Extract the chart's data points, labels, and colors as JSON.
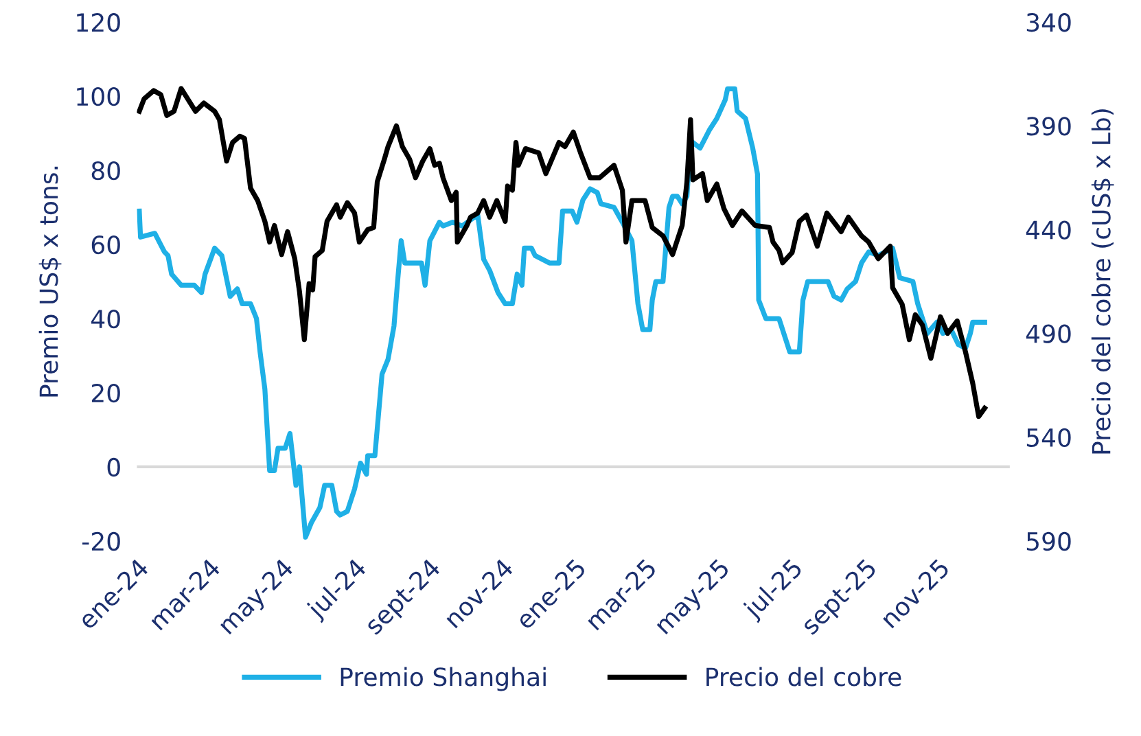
{
  "chart_data": {
    "type": "line",
    "ylabel": "Premio US$ x tons.",
    "y2label": "Precio del cobre (cUS$ x Lb)",
    "xlim": [
      "2024-01-01",
      "2025-12-31"
    ],
    "xticks": [
      {
        "value": "2024-01-01",
        "label": "ene-24"
      },
      {
        "value": "2024-03-01",
        "label": "mar-24"
      },
      {
        "value": "2024-05-01",
        "label": "may-24"
      },
      {
        "value": "2024-07-01",
        "label": "jul-24"
      },
      {
        "value": "2024-09-01",
        "label": "sept-24"
      },
      {
        "value": "2024-11-01",
        "label": "nov-24"
      },
      {
        "value": "2025-01-01",
        "label": "ene-25"
      },
      {
        "value": "2025-03-01",
        "label": "mar-25"
      },
      {
        "value": "2025-05-01",
        "label": "may-25"
      },
      {
        "value": "2025-07-01",
        "label": "jul-25"
      },
      {
        "value": "2025-09-01",
        "label": "sept-25"
      },
      {
        "value": "2025-11-01",
        "label": "nov-25"
      }
    ],
    "ylim": [
      -20,
      120
    ],
    "yticks": [
      -20,
      0,
      20,
      40,
      60,
      80,
      100,
      120
    ],
    "y2lim": [
      590,
      340
    ],
    "y2ticks": [
      340,
      390,
      440,
      490,
      540,
      590
    ],
    "ref_lines": [
      {
        "axis": "y",
        "value": 0,
        "color": "#d9d9d9"
      }
    ],
    "legend": "bottom",
    "grid": false,
    "marker": "none",
    "line_style": "solid",
    "series": [
      {
        "name": "Premio Shanghai",
        "color": "#1fb0e6",
        "axis": "y",
        "x": [
          "2024-01-03",
          "2024-01-04",
          "2024-01-16",
          "2024-01-24",
          "2024-01-27",
          "2024-01-30",
          "2024-02-07",
          "2024-02-18",
          "2024-02-24",
          "2024-02-27",
          "2024-03-06",
          "2024-03-12",
          "2024-03-19",
          "2024-03-25",
          "2024-03-29",
          "2024-04-05",
          "2024-04-10",
          "2024-04-13",
          "2024-04-17",
          "2024-04-21",
          "2024-04-25",
          "2024-04-28",
          "2024-05-04",
          "2024-05-08",
          "2024-05-13",
          "2024-05-16",
          "2024-05-21",
          "2024-05-26",
          "2024-06-02",
          "2024-06-06",
          "2024-06-12",
          "2024-06-16",
          "2024-06-19",
          "2024-06-25",
          "2024-07-01",
          "2024-07-06",
          "2024-07-11",
          "2024-07-12",
          "2024-07-18",
          "2024-07-24",
          "2024-07-29",
          "2024-08-03",
          "2024-08-06",
          "2024-08-09",
          "2024-08-12",
          "2024-08-26",
          "2024-08-29",
          "2024-09-02",
          "2024-09-10",
          "2024-09-13",
          "2024-09-21",
          "2024-09-29",
          "2024-10-12",
          "2024-10-17",
          "2024-10-22",
          "2024-10-29",
          "2024-11-04",
          "2024-11-10",
          "2024-11-14",
          "2024-11-18",
          "2024-11-20",
          "2024-11-26",
          "2024-11-29",
          "2024-12-11",
          "2024-12-19",
          "2024-12-22",
          "2024-12-30",
          "2025-01-03",
          "2025-01-08",
          "2025-01-14",
          "2025-01-20",
          "2025-01-23",
          "2025-02-03",
          "2025-02-10",
          "2025-02-18",
          "2025-02-23",
          "2025-02-27",
          "2025-03-05",
          "2025-03-07",
          "2025-03-10",
          "2025-03-16",
          "2025-03-21",
          "2025-03-24",
          "2025-03-28",
          "2025-04-01",
          "2025-04-05",
          "2025-04-08",
          "2025-04-16",
          "2025-04-24",
          "2025-04-30",
          "2025-05-07",
          "2025-05-09",
          "2025-05-15",
          "2025-05-17",
          "2025-05-24",
          "2025-05-30",
          "2025-06-03",
          "2025-06-04",
          "2025-06-10",
          "2025-06-21",
          "2025-06-27",
          "2025-06-30",
          "2025-07-08",
          "2025-07-11",
          "2025-07-15",
          "2025-08-01",
          "2025-08-06",
          "2025-08-12",
          "2025-08-17",
          "2025-08-24",
          "2025-08-29",
          "2025-09-04",
          "2025-09-12",
          "2025-09-24",
          "2025-09-30",
          "2025-10-11",
          "2025-10-15",
          "2025-10-23",
          "2025-10-31",
          "2025-11-05",
          "2025-11-12",
          "2025-11-18",
          "2025-11-24",
          "2025-11-28",
          "2025-11-30",
          "2025-12-10"
        ],
        "values": [
          69,
          62,
          63,
          58,
          57,
          52,
          49,
          49,
          47,
          52,
          59,
          57,
          46,
          48,
          44,
          44,
          40,
          31,
          21,
          -1,
          -1,
          5,
          5,
          9,
          -5,
          0,
          -19,
          -15,
          -11,
          -5,
          -5,
          -12,
          -13,
          -12,
          -6,
          1,
          -2,
          3,
          3,
          25,
          29,
          38,
          50,
          61,
          55,
          55,
          49,
          61,
          66,
          65,
          66,
          65,
          68,
          56,
          53,
          47,
          44,
          44,
          52,
          49,
          59,
          59,
          57,
          55,
          55,
          69,
          69,
          66,
          72,
          75,
          74,
          71,
          70,
          66,
          61,
          44,
          37,
          37,
          45,
          50,
          50,
          70,
          73,
          73,
          71,
          73,
          88,
          86,
          91,
          94,
          99,
          102,
          102,
          96,
          94,
          86,
          79,
          45,
          40,
          40,
          34,
          31,
          31,
          45,
          50,
          50,
          46,
          45,
          48,
          50,
          55,
          58,
          57,
          59,
          51,
          50,
          44,
          36,
          39,
          36,
          37,
          33,
          32,
          36,
          39,
          39
        ]
      },
      {
        "name": "Precio del cobre",
        "color": "#000000",
        "axis": "y2",
        "x": [
          "2024-01-03",
          "2024-01-07",
          "2024-01-15",
          "2024-01-21",
          "2024-01-26",
          "2024-02-01",
          "2024-02-07",
          "2024-02-19",
          "2024-02-26",
          "2024-03-06",
          "2024-03-10",
          "2024-03-16",
          "2024-03-21",
          "2024-03-27",
          "2024-03-31",
          "2024-04-05",
          "2024-04-11",
          "2024-04-17",
          "2024-04-21",
          "2024-04-25",
          "2024-05-01",
          "2024-05-06",
          "2024-05-12",
          "2024-05-16",
          "2024-05-20",
          "2024-05-24",
          "2024-05-27",
          "2024-05-29",
          "2024-06-04",
          "2024-06-08",
          "2024-06-16",
          "2024-06-19",
          "2024-06-25",
          "2024-07-01",
          "2024-07-05",
          "2024-07-12",
          "2024-07-17",
          "2024-07-20",
          "2024-07-26",
          "2024-07-29",
          "2024-08-05",
          "2024-08-10",
          "2024-08-16",
          "2024-08-21",
          "2024-08-27",
          "2024-09-02",
          "2024-09-06",
          "2024-09-10",
          "2024-09-13",
          "2024-09-20",
          "2024-09-24",
          "2024-09-25",
          "2024-10-03",
          "2024-10-06",
          "2024-10-12",
          "2024-10-17",
          "2024-10-22",
          "2024-10-28",
          "2024-11-04",
          "2024-11-06",
          "2024-11-10",
          "2024-11-13",
          "2024-11-15",
          "2024-11-21",
          "2024-12-02",
          "2024-12-08",
          "2024-12-19",
          "2024-12-24",
          "2024-12-31",
          "2025-01-06",
          "2025-01-14",
          "2025-01-22",
          "2025-02-03",
          "2025-02-10",
          "2025-02-13",
          "2025-02-18",
          "2025-03-01",
          "2025-03-07",
          "2025-03-16",
          "2025-03-24",
          "2025-04-01",
          "2025-04-05",
          "2025-04-08",
          "2025-04-10",
          "2025-04-18",
          "2025-04-22",
          "2025-04-30",
          "2025-05-06",
          "2025-05-13",
          "2025-05-21",
          "2025-06-01",
          "2025-06-13",
          "2025-06-16",
          "2025-06-21",
          "2025-06-24",
          "2025-07-02",
          "2025-07-08",
          "2025-07-14",
          "2025-07-23",
          "2025-07-31",
          "2025-08-12",
          "2025-08-18",
          "2025-08-29",
          "2025-09-04",
          "2025-09-12",
          "2025-09-22",
          "2025-09-24",
          "2025-10-02",
          "2025-10-08",
          "2025-10-13",
          "2025-10-19",
          "2025-10-26",
          "2025-11-03",
          "2025-11-09",
          "2025-11-17",
          "2025-11-24",
          "2025-11-30",
          "2025-12-05",
          "2025-12-10"
        ],
        "values": [
          383,
          377,
          373,
          375,
          385,
          383,
          372,
          383,
          379,
          383,
          387,
          407,
          398,
          395,
          396,
          420,
          426,
          436,
          446,
          438,
          452,
          441,
          454,
          470,
          493,
          466,
          469,
          453,
          450,
          436,
          428,
          434,
          427,
          432,
          446,
          440,
          439,
          417,
          406,
          400,
          390,
          400,
          406,
          415,
          407,
          401,
          409,
          408,
          415,
          426,
          422,
          446,
          438,
          434,
          432,
          426,
          434,
          426,
          436,
          419,
          421,
          398,
          409,
          401,
          403,
          413,
          398,
          400,
          393,
          403,
          415,
          415,
          409,
          421,
          446,
          426,
          426,
          439,
          443,
          452,
          438,
          417,
          387,
          416,
          413,
          426,
          418,
          430,
          438,
          431,
          438,
          439,
          446,
          450,
          456,
          451,
          436,
          433,
          448,
          432,
          441,
          434,
          443,
          446,
          454,
          448,
          468,
          476,
          493,
          481,
          486,
          502,
          482,
          490,
          484,
          499,
          514,
          530,
          526
        ]
      }
    ]
  }
}
